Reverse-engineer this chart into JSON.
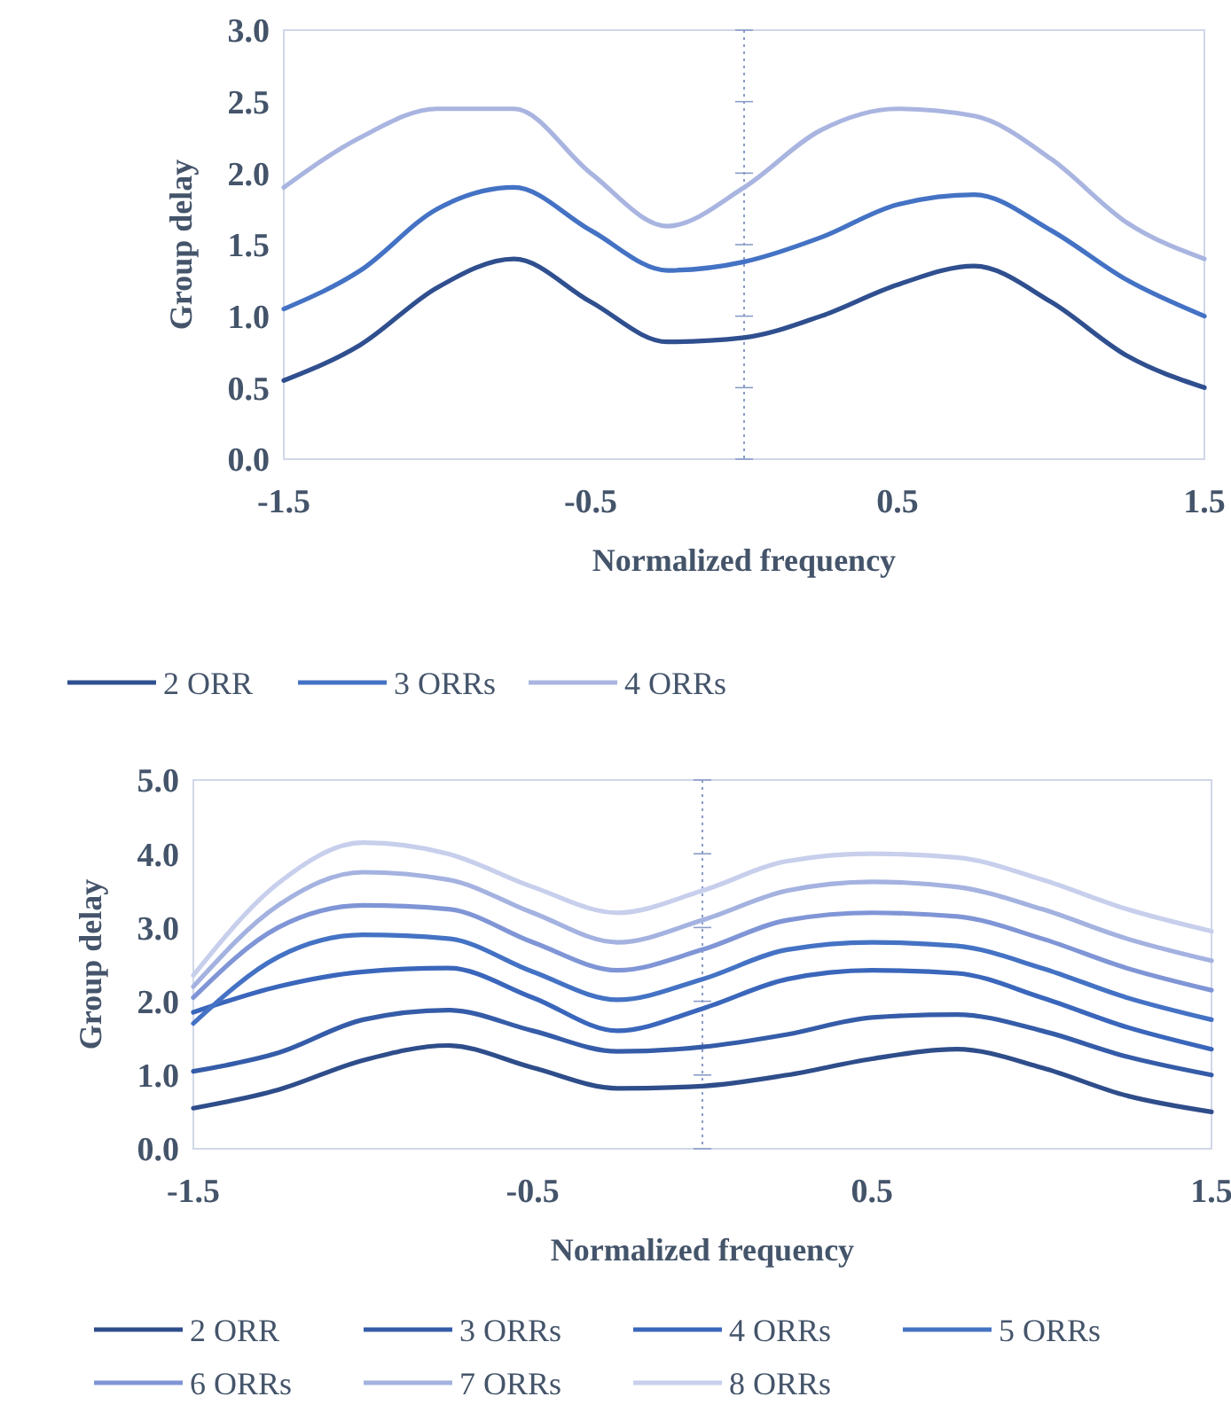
{
  "chart_data": [
    {
      "type": "line",
      "xlabel": "Normalized frequency",
      "ylabel": "Group delay",
      "x": [
        -1.5,
        -1.25,
        -1,
        -0.75,
        -0.5,
        -0.25,
        0,
        0.25,
        0.5,
        0.75,
        1,
        1.25,
        1.5
      ],
      "xlim": [
        -1.5,
        1.5
      ],
      "xticks": [
        -1.5,
        -0.5,
        0.5,
        1.5
      ],
      "ylim": [
        0,
        3
      ],
      "yticks": [
        {
          "value": 0,
          "label": "0.0"
        },
        {
          "value": 0.5,
          "label": "0.5"
        },
        {
          "value": 1,
          "label": "1.0"
        },
        {
          "value": 1.5,
          "label": "1.5"
        },
        {
          "value": 2,
          "label": "2.0"
        },
        {
          "value": 2.5,
          "label": "2.5"
        },
        {
          "value": 3,
          "label": "3.0"
        }
      ],
      "grid": false,
      "legend": "bottom",
      "marker": "none",
      "line_style": "solid",
      "ref_lines": [
        {
          "axis": "x",
          "value": 0,
          "line_style": "dotted",
          "color": "#8a9cc8"
        }
      ],
      "series": [
        {
          "name": "2 ORR",
          "color": "#2f4f8f",
          "values": [
            0.55,
            0.8,
            1.2,
            1.4,
            1.1,
            0.82,
            0.85,
            1.0,
            1.22,
            1.35,
            1.1,
            0.72,
            0.5
          ]
        },
        {
          "name": "3 ORRs",
          "color": "#4472c4",
          "values": [
            1.05,
            1.32,
            1.75,
            1.9,
            1.6,
            1.32,
            1.38,
            1.55,
            1.78,
            1.85,
            1.6,
            1.25,
            1.0
          ]
        },
        {
          "name": "4 ORRs",
          "color": "#a9b5e0",
          "values": [
            1.9,
            2.25,
            2.45,
            2.45,
            2.0,
            1.63,
            1.9,
            2.3,
            2.45,
            2.4,
            2.1,
            1.65,
            1.4
          ]
        }
      ]
    },
    {
      "type": "line",
      "xlabel": "Normalized frequency",
      "ylabel": "Group delay",
      "x": [
        -1.5,
        -1.25,
        -1,
        -0.75,
        -0.5,
        -0.25,
        0,
        0.25,
        0.5,
        0.75,
        1,
        1.25,
        1.5
      ],
      "xlim": [
        -1.5,
        1.5
      ],
      "xticks": [
        -1.5,
        -0.5,
        0.5,
        1.5
      ],
      "ylim": [
        0,
        5
      ],
      "yticks": [
        {
          "value": 0,
          "label": "0.0"
        },
        {
          "value": 1,
          "label": "1.0"
        },
        {
          "value": 2,
          "label": "2.0"
        },
        {
          "value": 3,
          "label": "3.0"
        },
        {
          "value": 4,
          "label": "4.0"
        },
        {
          "value": 5,
          "label": "5.0"
        }
      ],
      "grid": false,
      "legend": "bottom",
      "marker": "none",
      "line_style": "solid",
      "ref_lines": [
        {
          "axis": "x",
          "value": 0,
          "line_style": "dotted",
          "color": "#8a9cc8"
        }
      ],
      "series": [
        {
          "name": "2 ORR",
          "color": "#2e4d8a",
          "values": [
            0.55,
            0.8,
            1.2,
            1.4,
            1.1,
            0.82,
            0.85,
            1.0,
            1.22,
            1.35,
            1.1,
            0.72,
            0.5
          ]
        },
        {
          "name": "3 ORRs",
          "color": "#355ca8",
          "values": [
            1.05,
            1.3,
            1.75,
            1.88,
            1.6,
            1.32,
            1.38,
            1.55,
            1.78,
            1.82,
            1.6,
            1.25,
            1.0
          ]
        },
        {
          "name": "4 ORRs",
          "color": "#3a66bb",
          "values": [
            1.85,
            2.2,
            2.4,
            2.45,
            2.05,
            1.6,
            1.9,
            2.3,
            2.42,
            2.38,
            2.05,
            1.65,
            1.35
          ]
        },
        {
          "name": "5 ORRs",
          "color": "#4472c4",
          "values": [
            1.7,
            2.6,
            2.9,
            2.85,
            2.4,
            2.02,
            2.3,
            2.7,
            2.8,
            2.75,
            2.45,
            2.05,
            1.75
          ]
        },
        {
          "name": "6 ORRs",
          "color": "#7f95d6",
          "values": [
            2.05,
            3.0,
            3.3,
            3.25,
            2.8,
            2.42,
            2.7,
            3.1,
            3.2,
            3.15,
            2.85,
            2.45,
            2.15
          ]
        },
        {
          "name": "7 ORRs",
          "color": "#a4b2e0",
          "values": [
            2.2,
            3.3,
            3.75,
            3.65,
            3.2,
            2.8,
            3.1,
            3.5,
            3.62,
            3.55,
            3.25,
            2.85,
            2.55
          ]
        },
        {
          "name": "8 ORRs",
          "color": "#c7cfec",
          "values": [
            2.35,
            3.6,
            4.15,
            4.0,
            3.55,
            3.2,
            3.5,
            3.9,
            4.0,
            3.95,
            3.65,
            3.25,
            2.95
          ]
        }
      ]
    }
  ]
}
